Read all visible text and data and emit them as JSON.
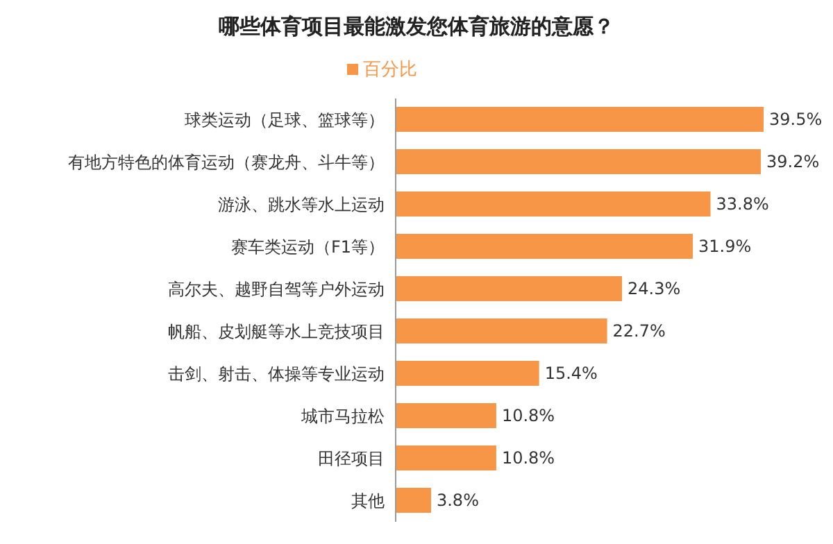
{
  "chart_data": {
    "type": "bar",
    "orientation": "horizontal",
    "title": "哪些体育项目最能激发您体育旅游的意愿？",
    "categories": [
      "球类运动（足球、篮球等）",
      "有地方特色的体育运动（赛龙舟、斗牛等）",
      "游泳、跳水等水上运动",
      "赛车类运动（F1等）",
      "高尔夫、越野自驾等户外运动",
      "帆船、皮划艇等水上竞技项目",
      "击剑、射击、体操等专业运动",
      "城市马拉松",
      "田径项目",
      "其他"
    ],
    "series": [
      {
        "name": "百分比",
        "color": "#f79646",
        "values": [
          39.5,
          39.2,
          33.8,
          31.9,
          24.3,
          22.7,
          15.4,
          10.8,
          10.8,
          3.8
        ],
        "value_labels": [
          "39.5%",
          "39.2%",
          "33.8%",
          "31.9%",
          "24.3%",
          "22.7%",
          "15.4%",
          "10.8%",
          "10.8%",
          "3.8%"
        ]
      }
    ],
    "legend": "top"
  }
}
